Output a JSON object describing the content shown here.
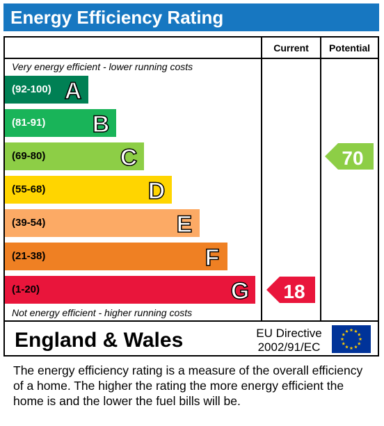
{
  "title": "Energy Efficiency Rating",
  "columns": {
    "current": "Current",
    "potential": "Potential"
  },
  "top_note": "Very energy efficient - lower running costs",
  "bottom_note": "Not energy efficient - higher running costs",
  "bands": [
    {
      "range": "(92-100)",
      "letter": "A",
      "color": "#008054",
      "range_color": "#ffffff"
    },
    {
      "range": "(81-91)",
      "letter": "B",
      "color": "#19b459",
      "range_color": "#ffffff"
    },
    {
      "range": "(69-80)",
      "letter": "C",
      "color": "#8dce46",
      "range_color": "#000000"
    },
    {
      "range": "(55-68)",
      "letter": "D",
      "color": "#ffd500",
      "range_color": "#000000"
    },
    {
      "range": "(39-54)",
      "letter": "E",
      "color": "#fcaa65",
      "range_color": "#000000"
    },
    {
      "range": "(21-38)",
      "letter": "F",
      "color": "#ef8023",
      "range_color": "#000000"
    },
    {
      "range": "(1-20)",
      "letter": "G",
      "color": "#e9153b",
      "range_color": "#000000"
    }
  ],
  "current": {
    "value": "18",
    "band": "G",
    "color": "#e9153b"
  },
  "potential": {
    "value": "70",
    "band": "C",
    "color": "#8dce46"
  },
  "footer": {
    "country": "England & Wales",
    "directive_line1": "EU Directive",
    "directive_line2": "2002/91/EC",
    "flag_icon": "eu-flag-icon"
  },
  "description": "The energy efficiency rating is a measure of the overall efficiency of a home.  The higher the rating the more energy efficient the home is and the lower the fuel bills will be."
}
